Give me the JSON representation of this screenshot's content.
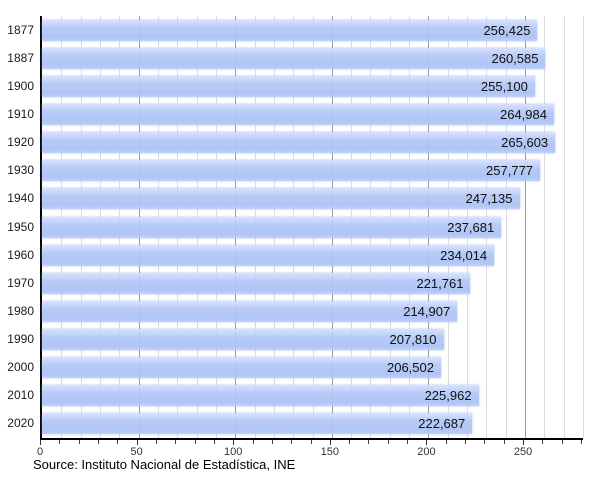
{
  "chart_data": {
    "type": "bar",
    "orientation": "horizontal",
    "title": "",
    "xlabel": "",
    "ylabel": "",
    "categories": [
      "1877",
      "1887",
      "1900",
      "1910",
      "1920",
      "1930",
      "1940",
      "1950",
      "1960",
      "1970",
      "1980",
      "1990",
      "2000",
      "2010",
      "2020"
    ],
    "values": [
      256425,
      260585,
      255100,
      264984,
      265603,
      257777,
      247135,
      237681,
      234014,
      221761,
      214907,
      207810,
      206502,
      225962,
      222687
    ],
    "value_labels": [
      "256,425",
      "260,585",
      "255,100",
      "264,984",
      "265,603",
      "257,777",
      "247,135",
      "237,681",
      "234,014",
      "221,761",
      "214,907",
      "207,810",
      "206,502",
      "225,962",
      "222,687"
    ],
    "axis_scale_divisor": 1000,
    "xlim": [
      0,
      280
    ],
    "x_ticks": [
      0,
      50,
      100,
      150,
      200,
      250
    ],
    "x_tick_labels": [
      "0",
      "50",
      "100",
      "150",
      "200",
      "250"
    ],
    "x_minor_step": 10,
    "grid": true,
    "legend": null,
    "source": "Source: Instituto Nacional de Estadística, INE",
    "colors": {
      "bar": "#aac1f4",
      "bar_highlight": "#d6e0fc",
      "grid_minor": "#dcdcdc",
      "grid_major": "#9b9b9b",
      "axis": "#000000",
      "label_text": "#101010",
      "tick_text": "#333333"
    }
  }
}
